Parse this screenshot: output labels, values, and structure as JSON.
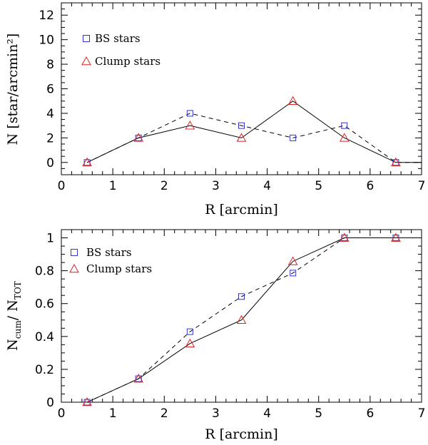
{
  "chart_data": [
    {
      "type": "line",
      "xlabel": "R [arcmin]",
      "ylabel": "N [star/arcmin²]",
      "xlim": [
        0,
        7
      ],
      "ylim": [
        -1,
        13
      ],
      "xticks": [
        0,
        1,
        2,
        3,
        4,
        5,
        6,
        7
      ],
      "yticks": [
        0,
        2,
        4,
        6,
        8,
        10,
        12
      ],
      "yticklabels": [
        "0",
        "2",
        "4",
        "6",
        "8",
        "10",
        "12"
      ],
      "x": [
        0.5,
        1.5,
        2.5,
        3.5,
        4.5,
        5.5,
        6.5
      ],
      "series": [
        {
          "name": "BS stars",
          "marker": "square",
          "line": "dashed",
          "values": [
            0,
            2,
            4,
            3,
            2,
            3,
            0
          ]
        },
        {
          "name": "Clump stars",
          "marker": "triangle",
          "line": "solid",
          "values": [
            0,
            2,
            3,
            2,
            5,
            2,
            0
          ]
        }
      ],
      "tail": {
        "x": 7,
        "value": 0
      }
    },
    {
      "type": "line",
      "xlabel": "R [arcmin]",
      "ylabel": "N_cum / N_TOT",
      "xlim": [
        0,
        7
      ],
      "ylim": [
        0,
        1.05
      ],
      "xticks": [
        0,
        1,
        2,
        3,
        4,
        5,
        6,
        7
      ],
      "yticks": [
        0,
        0.2,
        0.4,
        0.6,
        0.8,
        1
      ],
      "yticklabels": [
        "0",
        "0.2",
        "0.4",
        "0.6",
        "0.8",
        "1"
      ],
      "x": [
        0.5,
        1.5,
        2.5,
        3.5,
        4.5,
        5.5,
        6.5
      ],
      "series": [
        {
          "name": "BS stars",
          "marker": "square",
          "line": "dashed",
          "values": [
            0,
            0.143,
            0.429,
            0.643,
            0.786,
            1,
            1
          ]
        },
        {
          "name": "Clump stars",
          "marker": "triangle",
          "line": "solid",
          "values": [
            0,
            0.143,
            0.357,
            0.5,
            0.857,
            1,
            1
          ]
        }
      ],
      "tail": {
        "x": 7,
        "value": 1
      }
    }
  ],
  "ylabel_parts": {
    "base": "N",
    "cum_sub": "cum",
    "slash": "/",
    "tot_sub": "TOT"
  }
}
